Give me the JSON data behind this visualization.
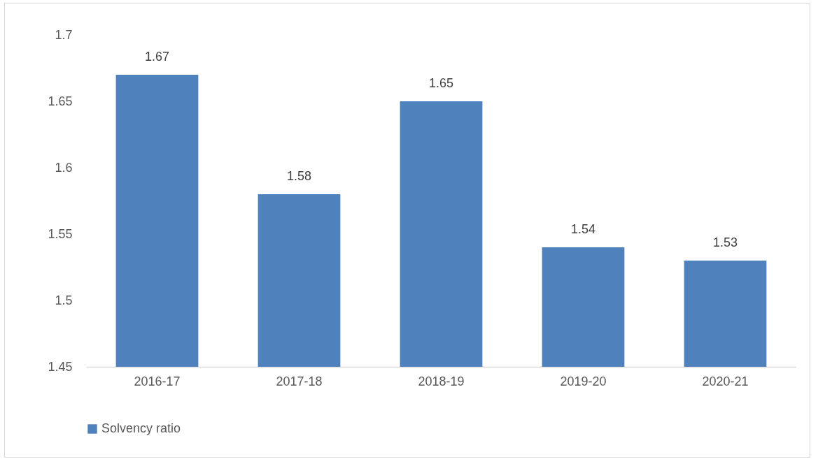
{
  "chart_data": {
    "type": "bar",
    "categories": [
      "2016-17",
      "2017-18",
      "2018-19",
      "2019-20",
      "2020-21"
    ],
    "series": [
      {
        "name": "Solvency ratio",
        "color": "#4f81bd",
        "values": [
          1.67,
          1.58,
          1.65,
          1.54,
          1.53
        ]
      }
    ],
    "ylim": [
      1.45,
      1.7
    ],
    "yticks": [
      1.45,
      1.5,
      1.55,
      1.6,
      1.65,
      1.7
    ],
    "data_labels": true,
    "legend": "bottom",
    "grid": false
  }
}
